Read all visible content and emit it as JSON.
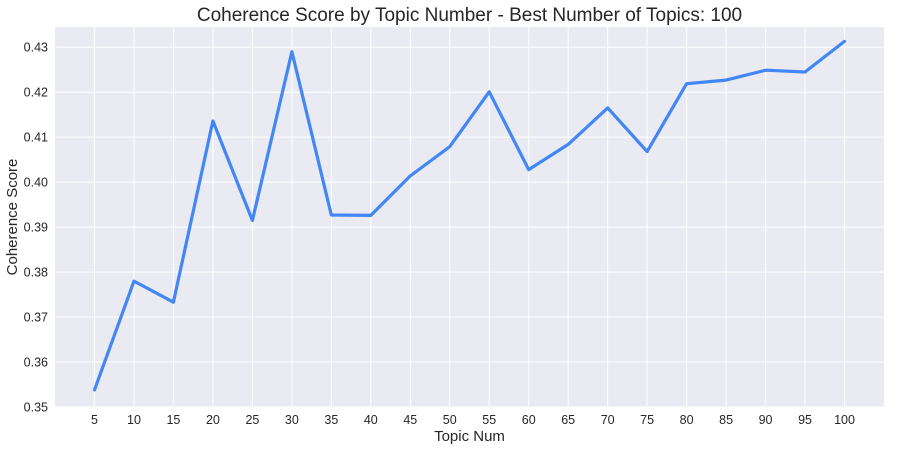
{
  "chart_data": {
    "type": "line",
    "title": "Coherence Score by Topic Number - Best Number of Topics: 100",
    "xlabel": "Topic Num",
    "ylabel": "Coherence Score",
    "x": [
      5,
      10,
      15,
      20,
      25,
      30,
      35,
      40,
      45,
      50,
      55,
      60,
      65,
      70,
      75,
      80,
      85,
      90,
      95,
      100
    ],
    "x_tick_labels": [
      "5",
      "10",
      "15",
      "20",
      "25",
      "30",
      "35",
      "40",
      "45",
      "50",
      "55",
      "60",
      "65",
      "70",
      "75",
      "80",
      "85",
      "90",
      "95",
      "100"
    ],
    "series": [
      {
        "name": "Coherence Score",
        "values": [
          0.3538,
          0.378,
          0.3733,
          0.4136,
          0.3915,
          0.429,
          0.3927,
          0.3926,
          0.4014,
          0.4079,
          0.4201,
          0.4028,
          0.4084,
          0.4165,
          0.4068,
          0.4219,
          0.4227,
          0.4249,
          0.4245,
          0.4313
        ],
        "color": "#4287f5"
      }
    ],
    "y_ticks": [
      0.35,
      0.36,
      0.37,
      0.38,
      0.39,
      0.4,
      0.41,
      0.42,
      0.43
    ],
    "y_tick_labels": [
      "0.35",
      "0.36",
      "0.37",
      "0.38",
      "0.39",
      "0.40",
      "0.41",
      "0.42",
      "0.43"
    ],
    "ylim": [
      0.35,
      0.4345
    ],
    "grid": true,
    "colors": {
      "plot_background": "#eaeaf2",
      "grid": "#ffffff",
      "line": "#4287f5"
    }
  }
}
